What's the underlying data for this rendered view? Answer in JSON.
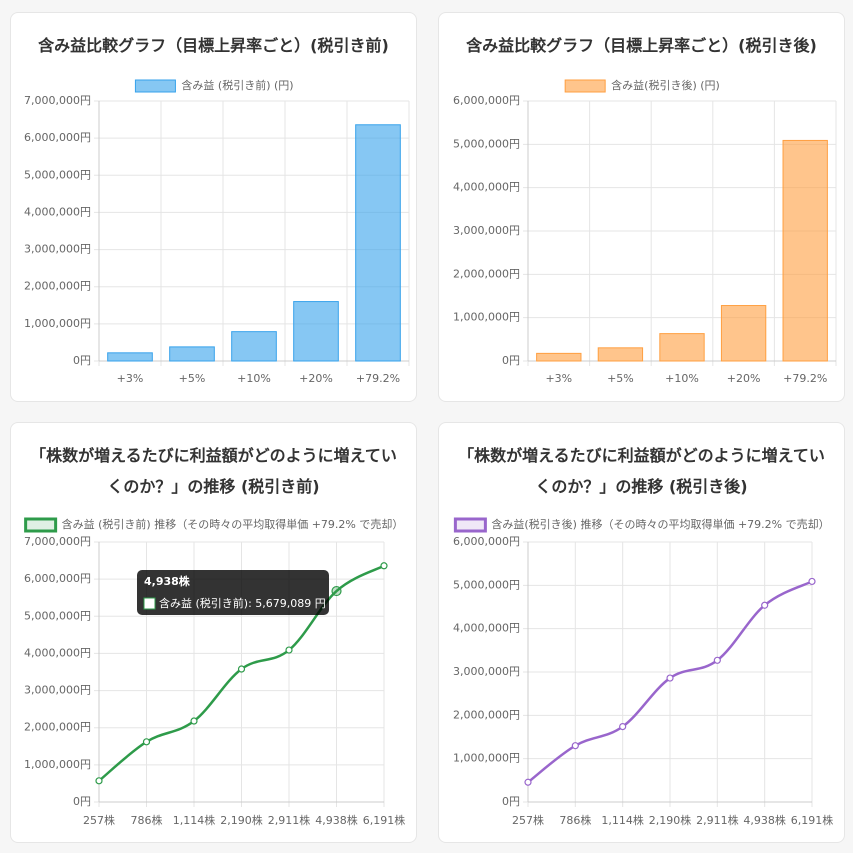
{
  "chart_data": [
    {
      "type": "bar",
      "title": "含み益比較グラフ（目標上昇率ごと）(税引き前)",
      "categories": [
        "+3%",
        "+5%",
        "+10%",
        "+20%",
        "+79.2%"
      ],
      "series": [
        {
          "name": "含み益 (税引き前) (円)",
          "color": "#36a2eb",
          "values": [
            220000,
            380000,
            790000,
            1600000,
            6360000
          ]
        }
      ],
      "ylim": [
        0,
        7000000
      ],
      "yticks": [
        {
          "value": 0,
          "label": "0円"
        },
        {
          "value": 1000000,
          "label": "1,000,000円"
        },
        {
          "value": 2000000,
          "label": "2,000,000円"
        },
        {
          "value": 3000000,
          "label": "3,000,000円"
        },
        {
          "value": 4000000,
          "label": "4,000,000円"
        },
        {
          "value": 5000000,
          "label": "5,000,000円"
        },
        {
          "value": 6000000,
          "label": "6,000,000円"
        },
        {
          "value": 7000000,
          "label": "7,000,000円"
        }
      ],
      "grid": true,
      "legend": "top"
    },
    {
      "type": "bar",
      "title": "含み益比較グラフ（目標上昇率ごと）(税引き後)",
      "categories": [
        "+3%",
        "+5%",
        "+10%",
        "+20%",
        "+79.2%"
      ],
      "series": [
        {
          "name": "含み益(税引き後) (円)",
          "color": "#ff9f40",
          "values": [
            176000,
            304000,
            632000,
            1280000,
            5090000
          ]
        }
      ],
      "ylim": [
        0,
        6000000
      ],
      "yticks": [
        {
          "value": 0,
          "label": "0円"
        },
        {
          "value": 1000000,
          "label": "1,000,000円"
        },
        {
          "value": 2000000,
          "label": "2,000,000円"
        },
        {
          "value": 3000000,
          "label": "3,000,000円"
        },
        {
          "value": 4000000,
          "label": "4,000,000円"
        },
        {
          "value": 5000000,
          "label": "5,000,000円"
        },
        {
          "value": 6000000,
          "label": "6,000,000円"
        }
      ],
      "grid": true,
      "legend": "top"
    },
    {
      "type": "line",
      "title": "「株数が増えるたびに利益額がどのように増えていくのか？」の推移 (税引き前)",
      "categories": [
        "257株",
        "786株",
        "1,114株",
        "2,190株",
        "2,911株",
        "4,938株",
        "6,191株"
      ],
      "series": [
        {
          "name": "含み益 (税引き前) 推移（その時々の平均取得単価 +79.2% で売却）",
          "color": "#2e9b4a",
          "values": [
            570000,
            1620000,
            2180000,
            3580000,
            4090000,
            5679089,
            6360000
          ]
        }
      ],
      "ylim": [
        0,
        7000000
      ],
      "yticks": [
        {
          "value": 0,
          "label": "0円"
        },
        {
          "value": 1000000,
          "label": "1,000,000円"
        },
        {
          "value": 2000000,
          "label": "2,000,000円"
        },
        {
          "value": 3000000,
          "label": "3,000,000円"
        },
        {
          "value": 4000000,
          "label": "4,000,000円"
        },
        {
          "value": 5000000,
          "label": "5,000,000円"
        },
        {
          "value": 6000000,
          "label": "6,000,000円"
        },
        {
          "value": 7000000,
          "label": "7,000,000円"
        }
      ],
      "grid": true,
      "legend": "top",
      "tooltip": {
        "title": "4,938株",
        "label": "含み益 (税引き前): 5,679,089 円"
      }
    },
    {
      "type": "line",
      "title": "「株数が増えるたびに利益額がどのように増えていくのか？」の推移 (税引き後)",
      "categories": [
        "257株",
        "786株",
        "1,114株",
        "2,190株",
        "2,911株",
        "4,938株",
        "6,191株"
      ],
      "series": [
        {
          "name": "含み益(税引き後) 推移（その時々の平均取得単価 +79.2% で売却）",
          "color": "#9966cc",
          "values": [
            456000,
            1300000,
            1740000,
            2860000,
            3270000,
            4540000,
            5090000
          ]
        }
      ],
      "ylim": [
        0,
        6000000
      ],
      "yticks": [
        {
          "value": 0,
          "label": "0円"
        },
        {
          "value": 1000000,
          "label": "1,000,000円"
        },
        {
          "value": 2000000,
          "label": "2,000,000円"
        },
        {
          "value": 3000000,
          "label": "3,000,000円"
        },
        {
          "value": 4000000,
          "label": "4,000,000円"
        },
        {
          "value": 5000000,
          "label": "5,000,000円"
        },
        {
          "value": 6000000,
          "label": "6,000,000円"
        }
      ],
      "grid": true,
      "legend": "top"
    }
  ]
}
